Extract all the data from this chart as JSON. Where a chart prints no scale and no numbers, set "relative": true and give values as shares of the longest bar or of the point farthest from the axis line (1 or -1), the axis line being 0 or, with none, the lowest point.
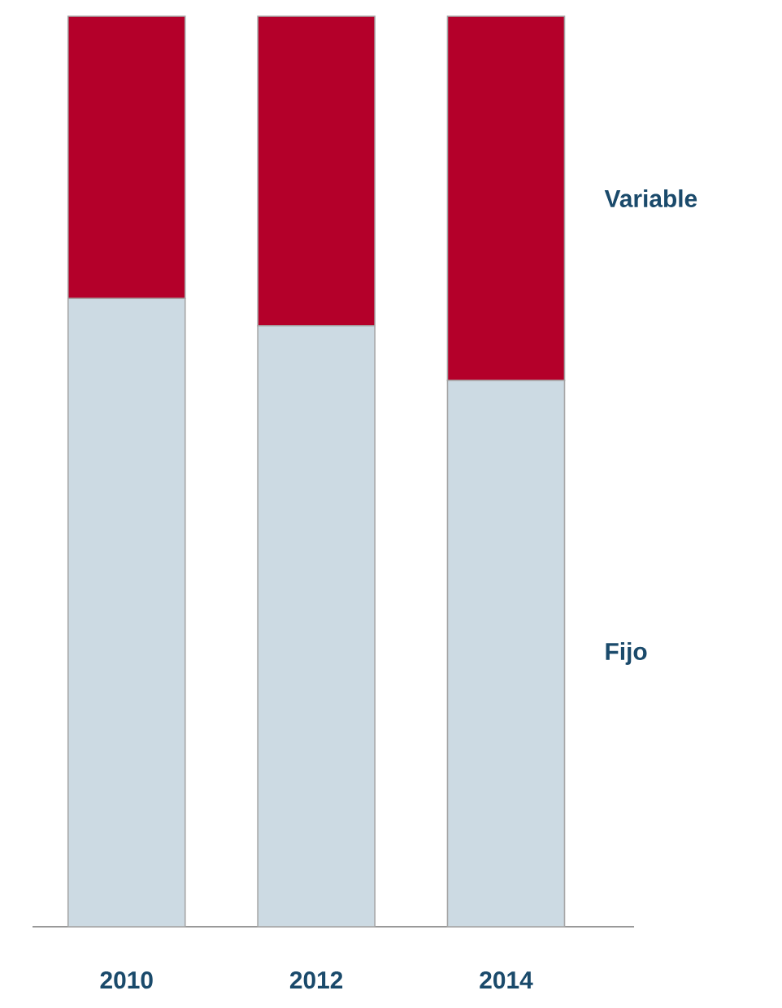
{
  "chart_data": {
    "type": "bar",
    "stacked": true,
    "relative": true,
    "categories": [
      "2010",
      "2012",
      "2014"
    ],
    "series": [
      {
        "name": "Fijo",
        "color": "#ccdae3",
        "values": [
          0.69,
          0.66,
          0.6
        ]
      },
      {
        "name": "Variable",
        "color": "#b4002a",
        "values": [
          0.31,
          0.34,
          0.4
        ]
      }
    ]
  }
}
